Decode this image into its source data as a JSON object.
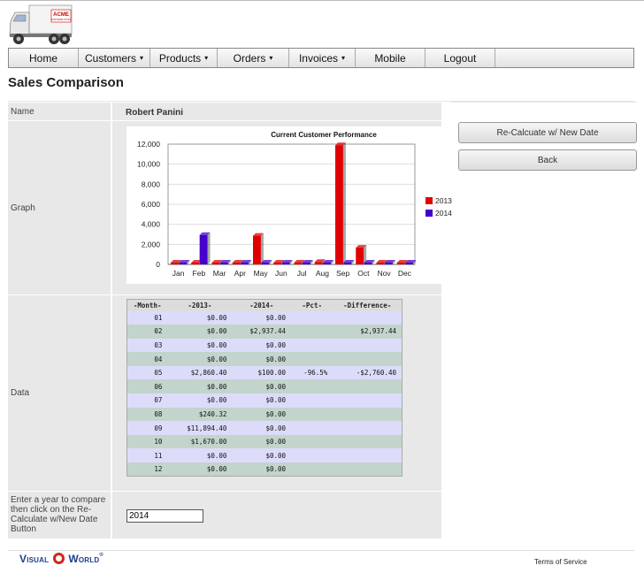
{
  "logo": {
    "text": "ACME",
    "subtext": "DISTRIBUTION"
  },
  "nav": [
    {
      "label": "Home",
      "dropdown": false
    },
    {
      "label": "Customers",
      "dropdown": true
    },
    {
      "label": "Products",
      "dropdown": true
    },
    {
      "label": "Orders",
      "dropdown": true
    },
    {
      "label": "Invoices",
      "dropdown": true
    },
    {
      "label": "Mobile",
      "dropdown": false
    },
    {
      "label": "Logout",
      "dropdown": false
    }
  ],
  "page": {
    "title": "Sales Comparison"
  },
  "form": {
    "name_label": "Name",
    "name_value": "Robert Panini",
    "graph_label": "Graph",
    "data_label": "Data",
    "year_label": "Enter a year to compare then click on the Re-Calculate w/New Date Button",
    "year_value": "2014"
  },
  "buttons": {
    "recalc": "Re-Calcuate w/ New Date",
    "back": "Back"
  },
  "chart_data": {
    "type": "bar",
    "title": "Current Customer Performance",
    "categories": [
      "Jan",
      "Feb",
      "Mar",
      "Apr",
      "May",
      "Jun",
      "Jul",
      "Aug",
      "Sep",
      "Oct",
      "Nov",
      "Dec"
    ],
    "series": [
      {
        "name": "2013",
        "color": "#e00000",
        "values": [
          0,
          0,
          0,
          0,
          2860.4,
          0,
          0,
          240.32,
          11894.4,
          1670.0,
          0,
          0
        ]
      },
      {
        "name": "2014",
        "color": "#4400cc",
        "values": [
          0,
          2937.44,
          0,
          0,
          100.0,
          0,
          0,
          0,
          0,
          0,
          0,
          0
        ]
      }
    ],
    "ylim": [
      0,
      12000
    ],
    "yticks": [
      "0",
      "2,000",
      "4,000",
      "6,000",
      "8,000",
      "10,000",
      "12,000"
    ],
    "grid": true,
    "legend": "right"
  },
  "table": {
    "headers": [
      "-Month-",
      "-2013-",
      "-2014-",
      "-Pct-",
      "-Difference-"
    ],
    "rows": [
      [
        "01",
        "$0.00",
        "$0.00",
        "",
        ""
      ],
      [
        "02",
        "$0.00",
        "$2,937.44",
        "",
        "$2,937.44"
      ],
      [
        "03",
        "$0.00",
        "$0.00",
        "",
        ""
      ],
      [
        "04",
        "$0.00",
        "$0.00",
        "",
        ""
      ],
      [
        "05",
        "$2,860.40",
        "$100.00",
        "-96.5%",
        "-$2,760.40"
      ],
      [
        "06",
        "$0.00",
        "$0.00",
        "",
        ""
      ],
      [
        "07",
        "$0.00",
        "$0.00",
        "",
        ""
      ],
      [
        "08",
        "$240.32",
        "$0.00",
        "",
        ""
      ],
      [
        "09",
        "$11,894.40",
        "$0.00",
        "",
        ""
      ],
      [
        "10",
        "$1,670.00",
        "$0.00",
        "",
        ""
      ],
      [
        "11",
        "$0.00",
        "$0.00",
        "",
        ""
      ],
      [
        "12",
        "$0.00",
        "$0.00",
        "",
        ""
      ]
    ]
  },
  "footer": {
    "brand_pre": "Visual",
    "brand_post": "World",
    "reg": "®",
    "terms": "Terms of Service"
  }
}
